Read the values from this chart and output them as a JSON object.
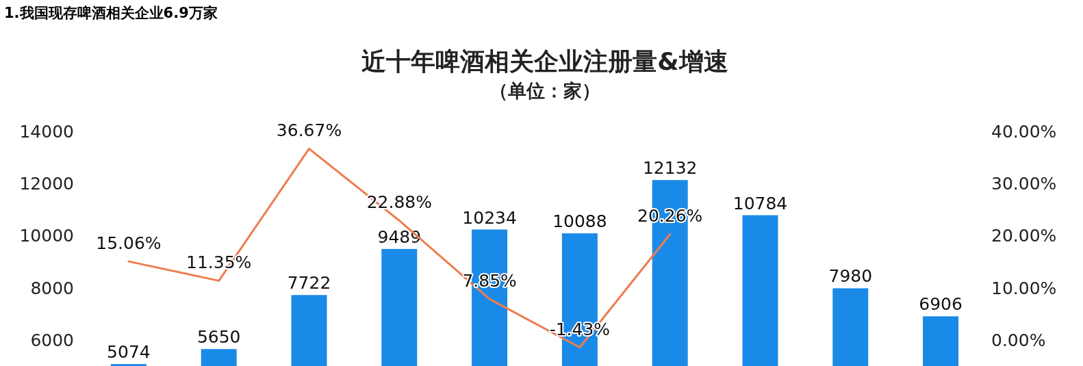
{
  "chart_data": {
    "type": "bar",
    "title": "近十年啤酒相关企业注册量&增速",
    "subtitle": "（单位：家）",
    "annotations": [
      "1.我国现存啤酒相关企业6.9万家"
    ],
    "categories": [
      null,
      null,
      null,
      null,
      null,
      null,
      null,
      null,
      null,
      null
    ],
    "series": [
      {
        "color": "#1a8ae8",
        "values": [
          5074,
          5650,
          7722,
          9489,
          10234,
          10088,
          12132,
          10784,
          7980,
          6906
        ],
        "data_labels": true
      },
      {
        "type": "line",
        "axis": "y2",
        "color": "#ed7d50",
        "values": [
          15.06,
          11.35,
          36.67,
          22.88,
          7.85,
          -1.43,
          20.26,
          null,
          null,
          null
        ],
        "value_labels": [
          "15.06%",
          "11.35%",
          "36.67%",
          "22.88%",
          "7.85%",
          "-1.43%",
          "20.26%",
          null,
          null,
          null
        ]
      }
    ],
    "ylim": [
      5000,
      14000
    ],
    "yticks": [
      6000,
      8000,
      10000,
      12000,
      14000
    ],
    "y2lim": [
      -5,
      40
    ],
    "y2ticks": [
      {
        "value": 0,
        "label": "0.00%"
      },
      {
        "value": 10,
        "label": "10.00%"
      },
      {
        "value": 20,
        "label": "20.00%"
      },
      {
        "value": 30,
        "label": "30.00%"
      },
      {
        "value": 40,
        "label": "40.00%"
      }
    ],
    "grid": false,
    "marker": "none",
    "tick_labels": "y"
  }
}
